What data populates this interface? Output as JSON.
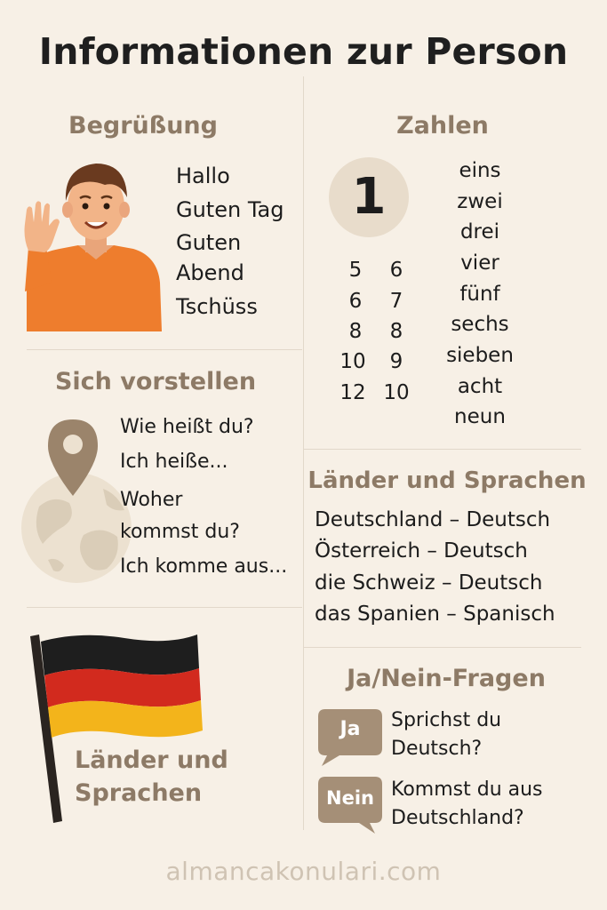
{
  "title": "Informationen zur Person",
  "greeting": {
    "heading": "Begrüßung",
    "lines": [
      "Hallo",
      "Guten Tag",
      "Guten",
      "Abend",
      "Tschüss"
    ]
  },
  "numbers": {
    "heading": "Zahlen",
    "big_number": "1",
    "left_col": [
      "5",
      "6",
      "8",
      "10",
      "12"
    ],
    "right_col": [
      "6",
      "7",
      "8",
      "9",
      "10"
    ],
    "words": [
      "eins",
      "zwei",
      "drei",
      "vier",
      "fünf",
      "sechs",
      "sieben",
      "acht",
      "neun"
    ]
  },
  "intro": {
    "heading": "Sich vorstellen",
    "lines": [
      "Wie heißt du?",
      "Ich heiße...",
      "Woher",
      "kommst du?",
      "Ich komme aus..."
    ]
  },
  "countries": {
    "heading": "Länder und Sprachen",
    "lines": [
      "Deutschland – Deutsch",
      "Österreich – Deutsch",
      "die Schweiz – Deutsch",
      "das Spanien – Spanisch"
    ]
  },
  "flag_panel": {
    "label_line1": "Länder und",
    "label_line2": "Sprachen"
  },
  "questions": {
    "heading": "Ja/Nein-Fragen",
    "q1": {
      "bubble": "Ja",
      "line1": "Sprichst du",
      "line2": "Deutsch?"
    },
    "q2": {
      "bubble": "Nein",
      "line1": "Kommst du aus",
      "line2": "Deutschland?"
    }
  },
  "footer": "almancakonulari.com",
  "colors": {
    "background": "#f7f0e6",
    "heading": "#8d7a66",
    "bubble": "#a58f77",
    "flag_black": "#1e1e1e",
    "flag_red": "#d22a1e",
    "flag_gold": "#f3b41b"
  }
}
